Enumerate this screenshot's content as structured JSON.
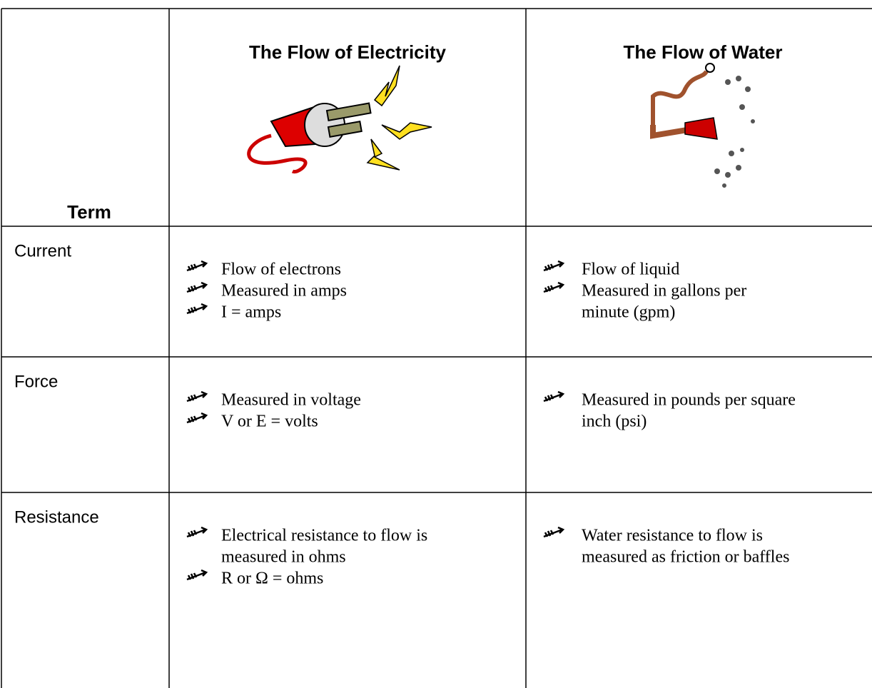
{
  "header": {
    "term": "Term",
    "electricity": "The Flow of Electricity",
    "water": "The Flow of Water"
  },
  "rows": [
    {
      "term": "Current",
      "electricity": [
        [
          "Flow of electrons"
        ],
        [
          "Measured in amps"
        ],
        [
          "I = amps"
        ]
      ],
      "water": [
        [
          "Flow of liquid"
        ],
        [
          "Measured in gallons per",
          "minute (gpm)"
        ]
      ]
    },
    {
      "term": "Force",
      "electricity": [
        [
          "Measured in voltage"
        ],
        [
          "V or E = volts"
        ]
      ],
      "water": [
        [
          "Measured in pounds per square",
          "inch (psi)"
        ]
      ]
    },
    {
      "term": "Resistance",
      "electricity": [
        [
          "Electrical resistance to flow is",
          "measured in ohms"
        ],
        [
          "R or Ω = ohms"
        ]
      ],
      "water": [
        [
          "Water resistance to flow is",
          "measured as friction or baffles"
        ]
      ]
    }
  ]
}
